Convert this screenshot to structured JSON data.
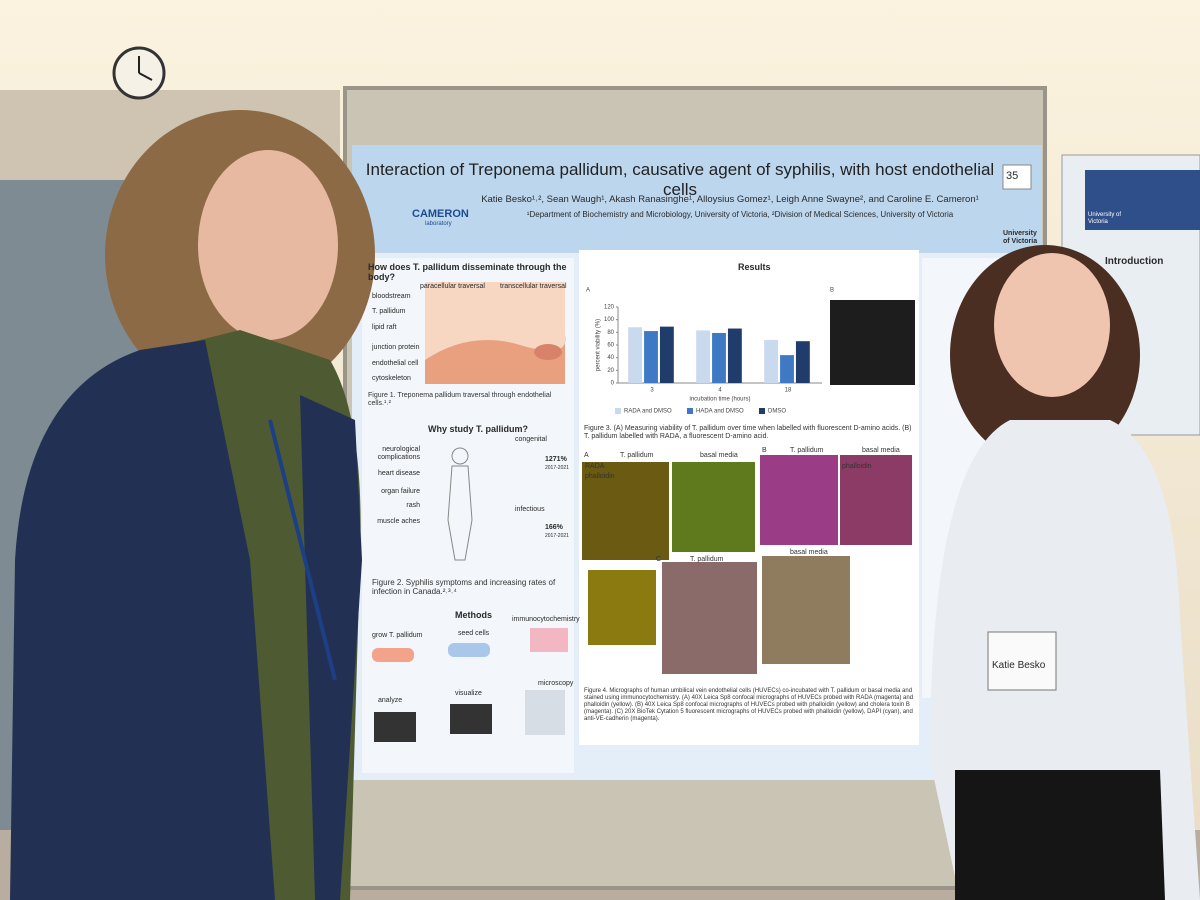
{
  "poster": {
    "number": "35",
    "title": "Interaction of Treponema pallidum, causative agent of syphilis, with host endothelial cells",
    "authors": "Katie Besko¹˒², Sean Waugh¹, Akash Ranasinghe¹, Alloysius Gomez¹, Leigh Anne Swayne², and Caroline E. Cameron¹",
    "affiliations": "¹Department of Biochemistry and Microbiology, University of Victoria, ²Division of Medical Sciences, University of Victoria",
    "lab_logo": "CAMERON",
    "lab_logo_sub": "laboratory",
    "university": "University of Victoria",
    "dissemination": {
      "heading": "How does T. pallidum disseminate through the body?",
      "labels": [
        "paracellular traversal",
        "transcellular traversal",
        "bloodstream",
        "T. pallidum",
        "lipid raft",
        "junction protein",
        "endothelial cell",
        "cytoskeleton"
      ],
      "caption": "Figure 1. Treponema pallidum traversal through endothelial cells.¹˒²"
    },
    "why": {
      "heading": "Why study T. pallidum?",
      "symptoms": [
        "neurological complications",
        "heart disease",
        "organ failure",
        "rash",
        "muscle aches"
      ],
      "congenital": "congenital",
      "congenital_rate": "1271%",
      "infectious": "infectious",
      "infectious_rate": "166%",
      "periods": [
        "2017-2021",
        "2017-2021"
      ],
      "caption": "Figure 2. Syphilis symptoms and increasing rates of infection in Canada.²˒³˒⁴"
    },
    "methods": {
      "heading": "Methods",
      "steps": [
        "grow T. pallidum",
        "seed cells",
        "immunocytochemistry",
        "microscopy",
        "visualize",
        "analyze"
      ]
    },
    "results": {
      "heading": "Results",
      "panel_labels": [
        "A",
        "B"
      ],
      "chart": {
        "type": "bar",
        "xlabel": "incubation time (hours)",
        "ylabel": "percent viability (%)",
        "categories": [
          "3",
          "4",
          "18"
        ],
        "series": [
          {
            "name": "RADA and DMSO",
            "color": "#c9d9ee",
            "values": [
              88,
              83,
              68
            ]
          },
          {
            "name": "HADA and DMSO",
            "color": "#3f79c4",
            "values": [
              82,
              79,
              44
            ]
          },
          {
            "name": "DMSO",
            "color": "#1f3c6b",
            "values": [
              89,
              86,
              66
            ]
          }
        ],
        "ylim": [
          0,
          120
        ],
        "yticks": [
          0,
          20,
          40,
          60,
          80,
          100,
          120
        ]
      },
      "caption3": "Figure 3. (A) Measuring viability of T. pallidum over time when labelled with fluorescent D-amino acids. (B) T. pallidum labelled with RADA, a fluorescent D-amino acid.",
      "fig4_labels": [
        "A",
        "T. pallidum",
        "basal media",
        "B",
        "T. pallidum",
        "basal media",
        "RADA",
        "phalloidin",
        "phalloidin",
        "C",
        "T. pallidum",
        "basal media"
      ],
      "caption4": "Figure 4. Micrographs of human umbilical vein endothelial cells (HUVECs) co-incubated with T. pallidum or basal media and stained using immunocytochemistry. (A) 40X Leica Sp8 confocal micrographs of HUVECs probed with RADA (magenta) and phalloidin (yellow). (B) 40X Leica Sp8 confocal micrographs of HUVECs probed with phalloidin (yellow) and cholera toxin B (magenta). (C) 20X BioTek Cytation 5 fluorescent micrographs of HUVECs probed with phalloidin (yellow), DAPI (cyan), and anti-VE-cadherin (magenta)."
    }
  },
  "name_tag": {
    "name": "Katie Besko"
  },
  "neighbor_poster": {
    "heading": "Introduction",
    "university": "University of Victoria"
  }
}
